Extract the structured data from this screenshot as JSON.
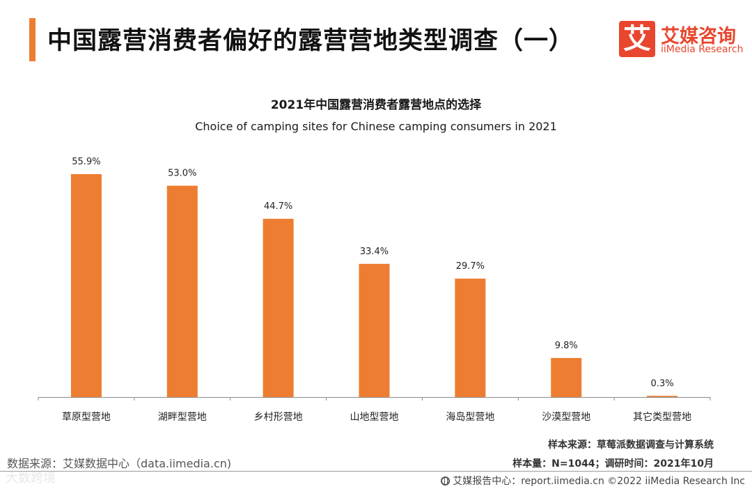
{
  "header": {
    "title": "中国露营消费者偏好的露营营地类型调查（一）",
    "accent_color": "#ed7d31"
  },
  "logo": {
    "mark": "艾",
    "name_cn": "艾媒咨询",
    "name_en": "iiMedia Research",
    "color": "#e8462e"
  },
  "chart_data": {
    "type": "bar",
    "title": "2021年中国露营消费者露营地点的选择",
    "subtitle": "Choice of camping sites for Chinese camping consumers in 2021",
    "categories": [
      "草原型营地",
      "湖畔型营地",
      "乡村形营地",
      "山地型营地",
      "海岛型营地",
      "沙漠型营地",
      "其它类型营地"
    ],
    "values": [
      55.9,
      53.0,
      44.7,
      33.4,
      29.7,
      9.8,
      0.3
    ],
    "value_labels": [
      "55.9%",
      "53.0%",
      "44.7%",
      "33.4%",
      "29.7%",
      "9.8%",
      "0.3%"
    ],
    "unit": "%",
    "ylim": [
      0,
      60
    ],
    "grid": false,
    "bar_color": "#ed7d31",
    "xlabel": "",
    "ylabel": ""
  },
  "notes": {
    "sample_source": "样本来源：草莓派数据调查与计算系统",
    "sample_size": "样本量：N=1044；调研时间：2021年10月"
  },
  "source": "数据来源：艾媒数据中心（data.iimedia.cn)",
  "watermark": "大数跨境",
  "footer": {
    "text": "艾媒报告中心：report.iimedia.cn  ©2022  iiMedia Research  Inc"
  }
}
